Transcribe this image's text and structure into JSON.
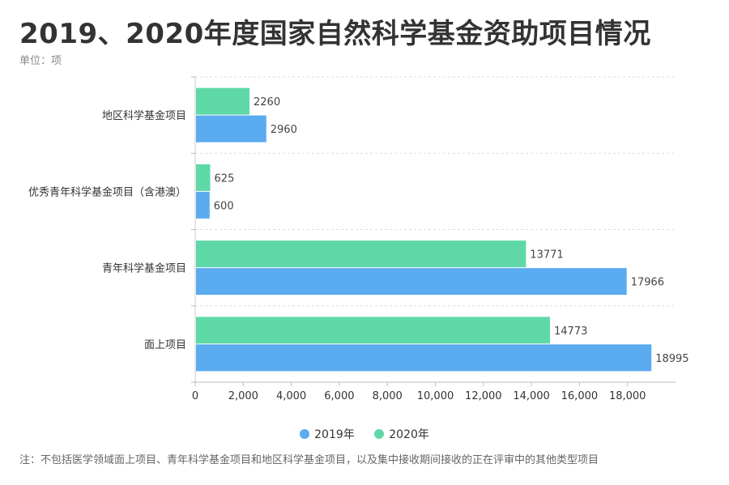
{
  "title": "2019、2020年度国家自然科学基金资助项目情况",
  "unit_label": "单位：项",
  "footnote": "注：不包括医学领域面上项目、青年科学基金项目和地区科学基金项目，以及集中接收期间接收的正在评审中的其他类型项目",
  "colors": {
    "2019": "#5aabf0",
    "2020": "#5fd8a8"
  },
  "chart_data": {
    "type": "bar",
    "orientation": "horizontal",
    "categories": [
      "地区科学基金项目",
      "优秀青年科学基金项目（含港澳）",
      "青年科学基金项目",
      "面上项目"
    ],
    "series": [
      {
        "name": "2020年",
        "values": [
          2260,
          625,
          13771,
          14773
        ]
      },
      {
        "name": "2019年",
        "values": [
          2960,
          600,
          17966,
          18995
        ]
      }
    ],
    "xlim": [
      0,
      20000
    ],
    "xticks": [
      "0",
      "2,000",
      "4,000",
      "6,000",
      "8,000",
      "10,000",
      "12,000",
      "14,000",
      "16,000",
      "18,000"
    ],
    "xtick_values": [
      0,
      2000,
      4000,
      6000,
      8000,
      10000,
      12000,
      14000,
      16000,
      18000
    ],
    "grid": "dashed-horizontal",
    "legend_position": "bottom"
  },
  "legend": [
    {
      "label": "2019年",
      "color": "#5aabf0"
    },
    {
      "label": "2020年",
      "color": "#5fd8a8"
    }
  ]
}
